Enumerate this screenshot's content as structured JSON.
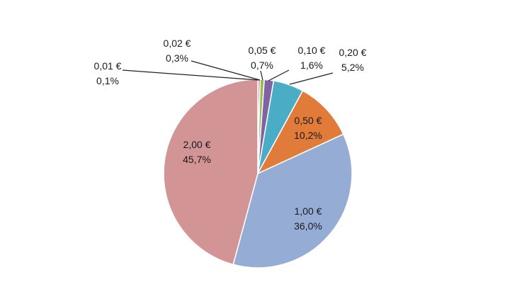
{
  "chart_data": {
    "type": "pie",
    "slices": [
      {
        "label": "0,01 €",
        "pct_label": "0,1%",
        "value": 0.1,
        "color": "#f2f2f2"
      },
      {
        "label": "0,02 €",
        "pct_label": "0,3%",
        "value": 0.3,
        "color": "#c0504d"
      },
      {
        "label": "0,05 €",
        "pct_label": "0,7%",
        "value": 0.7,
        "color": "#9bbb59"
      },
      {
        "label": "0,10 €",
        "pct_label": "1,6%",
        "value": 1.6,
        "color": "#8064a2"
      },
      {
        "label": "0,20 €",
        "pct_label": "5,2%",
        "value": 5.2,
        "color": "#4bacc6"
      },
      {
        "label": "0,50 €",
        "pct_label": "10,2%",
        "value": 10.2,
        "color": "#e07b39"
      },
      {
        "label": "1,00 €",
        "pct_label": "36,0%",
        "value": 36.0,
        "color": "#95acd4"
      },
      {
        "label": "2,00 €",
        "pct_label": "45,7%",
        "value": 45.7,
        "color": "#d29494"
      }
    ]
  }
}
